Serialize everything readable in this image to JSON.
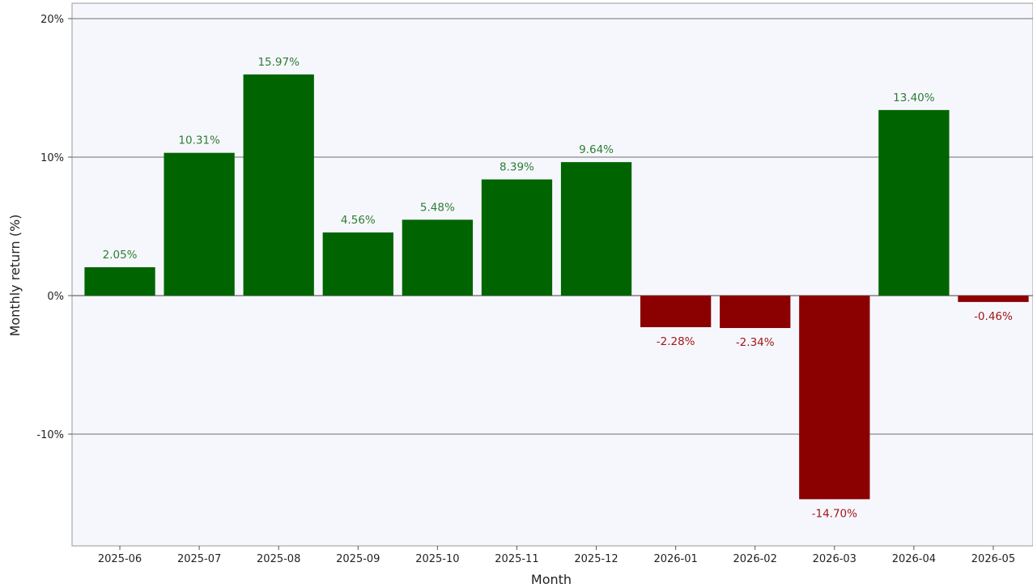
{
  "chart_data": {
    "type": "bar",
    "title": "",
    "xlabel": "Month",
    "ylabel": "Monthly return (%)",
    "ylim": [
      -18,
      20
    ],
    "yticks": [
      20,
      10,
      0,
      -10
    ],
    "ytick_labels": [
      "20%",
      "10%",
      "0%",
      "-10%"
    ],
    "grid": "horizontal",
    "categories": [
      "2025-06",
      "2025-07",
      "2025-08",
      "2025-09",
      "2025-10",
      "2025-11",
      "2025-12",
      "2026-01",
      "2026-02",
      "2026-03",
      "2026-04",
      "2026-05"
    ],
    "values": [
      2.05,
      10.31,
      15.97,
      4.56,
      5.48,
      8.39,
      9.64,
      -2.28,
      -2.34,
      -14.7,
      13.4,
      -0.46
    ],
    "data_labels": [
      "2.05%",
      "10.31%",
      "15.97%",
      "4.56%",
      "5.48%",
      "8.39%",
      "9.64%",
      "-2.28%",
      "-2.34%",
      "-14.70%",
      "13.40%",
      "-0.46%"
    ],
    "colors": {
      "positive_bar": "#006400",
      "negative_bar": "#8b0000",
      "positive_label": "#2e7d32",
      "negative_label": "#a01818",
      "plot_background": "#f6f7fd",
      "gridline": "#8a8a8a"
    }
  }
}
